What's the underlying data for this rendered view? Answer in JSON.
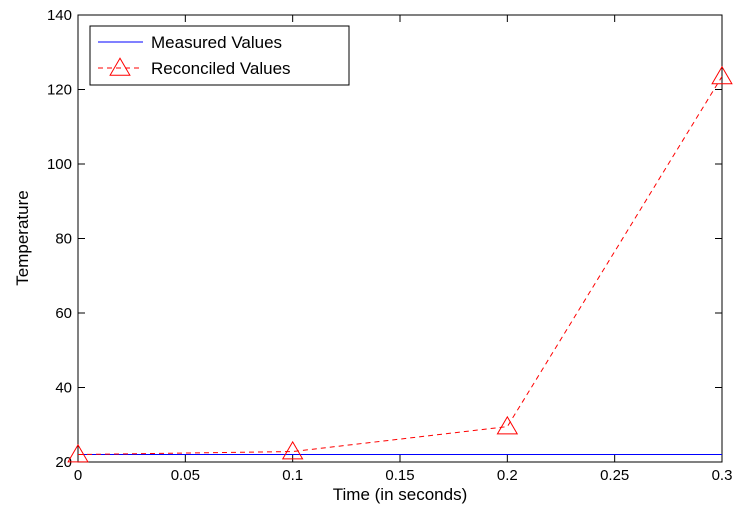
{
  "chart_data": {
    "type": "line",
    "title": "",
    "xlabel": "Time (in seconds)",
    "ylabel": "Temperature",
    "xlim": [
      0,
      0.3
    ],
    "ylim": [
      20,
      140
    ],
    "xticks": [
      0,
      0.05,
      0.1,
      0.15,
      0.2,
      0.25,
      0.3
    ],
    "xtick_labels": [
      "0",
      "0.05",
      "0.1",
      "0.15",
      "0.2",
      "0.25",
      "0.3"
    ],
    "yticks": [
      20,
      40,
      60,
      80,
      100,
      120,
      140
    ],
    "ytick_labels": [
      "20",
      "40",
      "60",
      "80",
      "100",
      "120",
      "140"
    ],
    "grid": false,
    "legend": {
      "position": "top-left"
    },
    "series": [
      {
        "name": "Measured Values",
        "color": "#0000ff",
        "line_style": "solid",
        "marker": "none",
        "x": [
          0,
          0.1,
          0.2,
          0.3
        ],
        "y": [
          22,
          22,
          22,
          22
        ]
      },
      {
        "name": "Reconciled Values",
        "color": "#ff0000",
        "line_style": "dashed",
        "marker": "triangle",
        "x": [
          0,
          0.1,
          0.2,
          0.3
        ],
        "y": [
          22,
          22.8,
          29.5,
          123.5
        ]
      }
    ]
  }
}
